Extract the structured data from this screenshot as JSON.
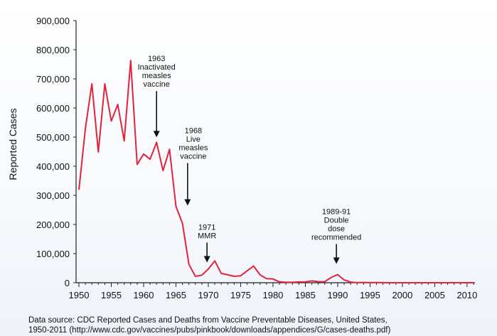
{
  "chart_data": {
    "type": "line",
    "title": "",
    "xlabel": "",
    "ylabel": "Reported Cases",
    "xlim": [
      1950,
      2011
    ],
    "ylim": [
      0,
      900000
    ],
    "xticks": [
      "1950",
      "1955",
      "1960",
      "1965",
      "1970",
      "1975",
      "1980",
      "1985",
      "1990",
      "1995",
      "2000",
      "2005",
      "2010"
    ],
    "yticks": [
      "0",
      "100,000",
      "200,000",
      "300,000",
      "400,000",
      "500,000",
      "600,000",
      "700,000",
      "800,000",
      "900,000"
    ],
    "grid": false,
    "line_color": "#e0233f",
    "series": [
      {
        "name": "",
        "x": [
          1950,
          1951,
          1952,
          1953,
          1954,
          1955,
          1956,
          1957,
          1958,
          1959,
          1960,
          1961,
          1962,
          1963,
          1964,
          1965,
          1966,
          1967,
          1968,
          1969,
          1970,
          1971,
          1972,
          1973,
          1974,
          1975,
          1976,
          1977,
          1978,
          1979,
          1980,
          1981,
          1982,
          1983,
          1984,
          1985,
          1986,
          1987,
          1988,
          1989,
          1990,
          1991,
          1992,
          1993,
          1994,
          1995,
          1996,
          1997,
          1998,
          1999,
          2000,
          2001,
          2002,
          2003,
          2004,
          2005,
          2006,
          2007,
          2008,
          2009,
          2010,
          2011
        ],
        "y": [
          319000,
          530000,
          683000,
          449000,
          683000,
          555000,
          612000,
          487000,
          763000,
          406000,
          442000,
          424000,
          482000,
          385000,
          458000,
          262000,
          204000,
          63000,
          22000,
          26000,
          47000,
          75000,
          32000,
          27000,
          22000,
          24000,
          41000,
          57000,
          27000,
          14000,
          13000,
          3000,
          1700,
          1500,
          2600,
          2800,
          6300,
          3700,
          3400,
          18000,
          28000,
          9600,
          2200,
          310,
          960,
          310,
          510,
          140,
          100,
          100,
          86,
          116,
          44,
          56,
          37,
          66,
          55,
          43,
          140,
          71,
          63,
          220
        ]
      }
    ],
    "annotations": [
      {
        "id": "1963",
        "x": 1962,
        "y": 480000,
        "lines": [
          "1963",
          "Inactivated",
          "measles",
          "vaccine"
        ]
      },
      {
        "id": "1968",
        "x": 1966.8,
        "y": 245000,
        "lines": [
          "1968",
          "Live",
          "measles",
          "vaccine"
        ]
      },
      {
        "id": "1971",
        "x": 1969.8,
        "y": 50000,
        "lines": [
          "1971",
          "MMR"
        ]
      },
      {
        "id": "1989",
        "x": 1989.8,
        "y": 45000,
        "lines": [
          "1989-91",
          "Double",
          "dose",
          "recommended"
        ]
      }
    ]
  },
  "source": {
    "line1": "Data source: CDC Reported Cases and Deaths from Vaccine Preventable Diseases, United States,",
    "line2": "1950-2011 (http://www.cdc.gov/vaccines/pubs/pinkbook/downloads/appendices/G/cases-deaths.pdf)"
  }
}
